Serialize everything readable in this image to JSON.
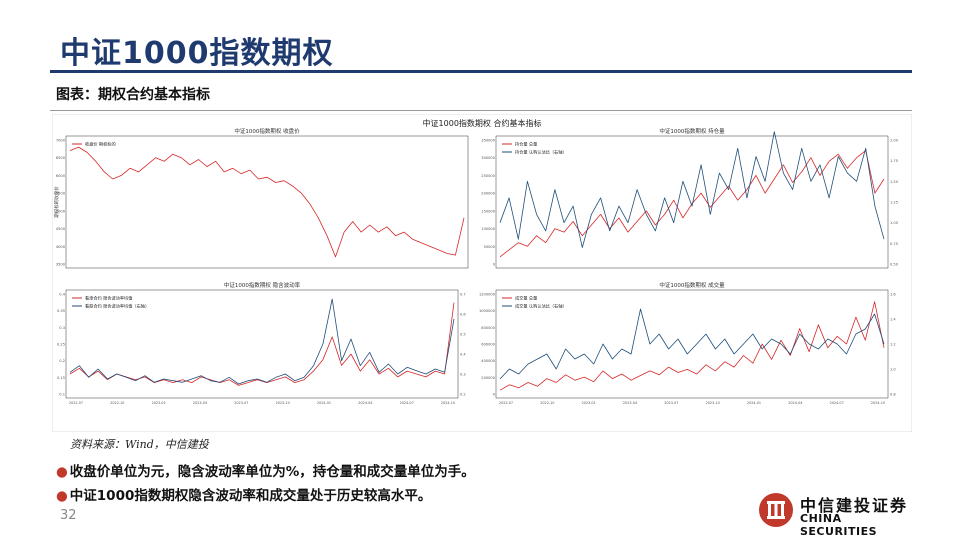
{
  "page": {
    "title": "中证1000指数期权",
    "subtitle": "图表：期权合约基本指标",
    "source": "资料来源：Wind，中信建投",
    "bullets": [
      "收盘价单位为元，隐含波动率单位为%，持仓量和成交量单位为手。",
      "中证1000指数期权隐含波动率和成交量处于历史较高水平。"
    ],
    "page_number": "32",
    "logo": {
      "cn": "中信建投证券",
      "en": "CHINA SECURITIES"
    },
    "colors": {
      "title": "#1e3a6e",
      "red": "#d62728",
      "blue": "#1f4e79",
      "bullet": "#c0392b"
    }
  },
  "chart_data": {
    "suptitle": "中证1000指数期权 合约基本指标",
    "panels": [
      {
        "id": "close",
        "type": "line",
        "title": "中证1000指数期权 收盘价",
        "ylabel": "期权标的收盘价",
        "yticks": [
          "7000",
          "6500",
          "6000",
          "5500",
          "5000",
          "4500",
          "4000",
          "3500"
        ],
        "ylim": [
          3500,
          7000
        ],
        "series": [
          {
            "name": "收盘价 期权标的",
            "color": "#d62728",
            "values": [
              6700,
              6800,
              6650,
              6400,
              6100,
              5900,
              6000,
              6200,
              6100,
              6300,
              6500,
              6400,
              6600,
              6500,
              6300,
              6450,
              6250,
              6400,
              6100,
              6200,
              6050,
              6150,
              5900,
              5950,
              5800,
              5850,
              5700,
              5500,
              5200,
              4800,
              4300,
              3700,
              4400,
              4700,
              4400,
              4600,
              4400,
              4550,
              4300,
              4400,
              4200,
              4100,
              4000,
              3900,
              3800,
              3750,
              4800
            ]
          }
        ]
      },
      {
        "id": "oi",
        "type": "line",
        "title": "中证1000指数期权 持仓量",
        "yticks_left": [
          "350000",
          "300000",
          "250000",
          "200000",
          "150000",
          "100000",
          "50000",
          "0"
        ],
        "ylim_left": [
          0,
          350000
        ],
        "yticks_right": [
          "2.00",
          "1.75",
          "1.50",
          "1.25",
          "1.00",
          "0.75",
          "0.50"
        ],
        "ylim_right": [
          0.5,
          2.0
        ],
        "series": [
          {
            "name": "持仓量 总量",
            "color": "#d62728",
            "axis": "left",
            "values": [
              20000,
              40000,
              60000,
              50000,
              80000,
              60000,
              100000,
              90000,
              120000,
              80000,
              110000,
              140000,
              100000,
              130000,
              90000,
              120000,
              150000,
              110000,
              140000,
              180000,
              130000,
              170000,
              200000,
              160000,
              190000,
              220000,
              180000,
              210000,
              250000,
              200000,
              240000,
              280000,
              230000,
              260000,
              300000,
              250000,
              290000,
              310000,
              270000,
              300000,
              320000,
              200000,
              240000
            ]
          },
          {
            "name": "持仓量 认购认沽比（右轴）",
            "color": "#1f4e79",
            "axis": "right",
            "values": [
              1.0,
              1.3,
              0.8,
              1.5,
              1.1,
              0.9,
              1.4,
              1.0,
              1.2,
              0.7,
              1.1,
              1.3,
              0.9,
              1.2,
              1.0,
              1.4,
              1.1,
              0.9,
              1.3,
              1.0,
              1.5,
              1.2,
              1.7,
              1.1,
              1.6,
              1.4,
              1.9,
              1.3,
              1.8,
              1.5,
              2.1,
              1.6,
              1.4,
              1.9,
              1.5,
              1.7,
              1.3,
              1.8,
              1.6,
              1.5,
              1.9,
              1.2,
              0.8
            ]
          }
        ]
      },
      {
        "id": "iv",
        "type": "line",
        "title": "中证1000指数期权 隐含波动率",
        "xticks": [
          "2022-07",
          "2022-10",
          "2023-01",
          "2023-04",
          "2023-07",
          "2023-10",
          "2024-01",
          "2024-04",
          "2024-07",
          "2024-10"
        ],
        "yticks_left": [
          "0.4",
          "0.35",
          "0.3",
          "0.25",
          "0.2",
          "0.15",
          "0.1"
        ],
        "ylim_left": [
          0.1,
          0.45
        ],
        "yticks_right": [
          "0.7",
          "0.6",
          "0.5",
          "0.4",
          "0.3",
          "0.2"
        ],
        "ylim_right": [
          0.15,
          0.75
        ],
        "series": [
          {
            "name": "看涨合约 隐含波动率均值",
            "color": "#d62728",
            "axis": "left",
            "values": [
              0.17,
              0.19,
              0.16,
              0.18,
              0.15,
              0.17,
              0.16,
              0.15,
              0.16,
              0.14,
              0.15,
              0.14,
              0.15,
              0.14,
              0.16,
              0.15,
              0.14,
              0.15,
              0.13,
              0.14,
              0.15,
              0.14,
              0.15,
              0.16,
              0.14,
              0.15,
              0.18,
              0.22,
              0.3,
              0.2,
              0.24,
              0.18,
              0.22,
              0.17,
              0.19,
              0.16,
              0.18,
              0.17,
              0.16,
              0.18,
              0.17,
              0.42
            ]
          },
          {
            "name": "看跌合约 隐含波动率均值（右轴）",
            "color": "#1f4e79",
            "axis": "right",
            "values": [
              0.28,
              0.32,
              0.25,
              0.3,
              0.24,
              0.27,
              0.25,
              0.23,
              0.26,
              0.22,
              0.24,
              0.23,
              0.22,
              0.24,
              0.26,
              0.23,
              0.22,
              0.25,
              0.21,
              0.23,
              0.24,
              0.22,
              0.25,
              0.27,
              0.23,
              0.25,
              0.32,
              0.45,
              0.72,
              0.35,
              0.48,
              0.32,
              0.4,
              0.28,
              0.33,
              0.27,
              0.31,
              0.29,
              0.27,
              0.3,
              0.28,
              0.6
            ]
          }
        ]
      },
      {
        "id": "vol",
        "type": "line",
        "title": "中证1000指数期权 成交量",
        "xticks": [
          "2022-07",
          "2022-10",
          "2023-01",
          "2023-04",
          "2023-07",
          "2023-10",
          "2024-01",
          "2024-04",
          "2024-07",
          "2024-10"
        ],
        "yticks_left": [
          "1200000",
          "1000000",
          "800000",
          "600000",
          "400000",
          "200000",
          "0"
        ],
        "ylim_left": [
          0,
          1300000
        ],
        "yticks_right": [
          "1.6",
          "1.4",
          "1.2",
          "1.0",
          "0.8"
        ],
        "ylim_right": [
          0.7,
          1.7
        ],
        "series": [
          {
            "name": "成交量 总量",
            "color": "#d62728",
            "axis": "left",
            "values": [
              50000,
              120000,
              80000,
              150000,
              100000,
              200000,
              150000,
              250000,
              180000,
              220000,
              160000,
              300000,
              200000,
              260000,
              180000,
              240000,
              300000,
              250000,
              350000,
              280000,
              320000,
              260000,
              380000,
              300000,
              420000,
              350000,
              500000,
              400000,
              650000,
              450000,
              700000,
              500000,
              850000,
              550000,
              900000,
              600000,
              750000,
              650000,
              1000000,
              700000,
              1200000,
              600000
            ]
          },
          {
            "name": "成交量 认购认沽比（右轴）",
            "color": "#1f4e79",
            "axis": "right",
            "values": [
              0.85,
              0.95,
              0.9,
              1.0,
              1.05,
              1.1,
              0.95,
              1.15,
              1.05,
              1.1,
              1.0,
              1.2,
              1.05,
              1.15,
              1.1,
              1.55,
              1.2,
              1.3,
              1.15,
              1.25,
              1.1,
              1.2,
              1.3,
              1.15,
              1.25,
              1.1,
              1.2,
              1.3,
              1.15,
              1.25,
              1.2,
              1.1,
              1.3,
              1.2,
              1.15,
              1.25,
              1.2,
              1.1,
              1.3,
              1.35,
              1.5,
              1.2
            ]
          }
        ]
      }
    ]
  }
}
